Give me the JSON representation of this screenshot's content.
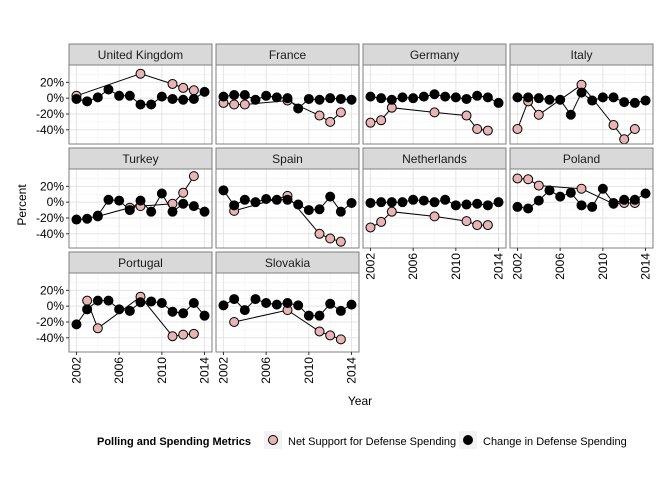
{
  "chart_data": {
    "type": "scatter",
    "facets_layout": "4 columns, shared axes, lines connect points of each series",
    "xlabel": "Year",
    "ylabel": "Percent",
    "xlim": [
      2001.3,
      2014.7
    ],
    "ylim": [
      -58,
      42
    ],
    "x_ticks": [
      2002,
      2006,
      2010,
      2014
    ],
    "x_tick_labels": [
      "2002",
      "2006",
      "2010",
      "2014"
    ],
    "y_ticks": [
      20,
      0,
      -20,
      -40
    ],
    "y_tick_labels": [
      "20%",
      "0%",
      "-20%",
      "-40%"
    ],
    "grid": true,
    "legend": {
      "title": "Polling and Spending Metrics",
      "placement": "bottom",
      "items": [
        {
          "key": "support",
          "label": "Net Support for Defense Spending",
          "marker": "open-circle-pink",
          "color": "#e8b4b4"
        },
        {
          "key": "change",
          "label": "Change in Defense Spending",
          "marker": "filled-circle",
          "color": "#000000"
        }
      ]
    },
    "facets": [
      {
        "name": "United Kingdom",
        "support": {
          "x": [
            2002,
            2008,
            2011,
            2012,
            2013
          ],
          "y": [
            3,
            31,
            18,
            13,
            10
          ]
        },
        "change": {
          "x": [
            2002,
            2003,
            2004,
            2005,
            2006,
            2007,
            2008,
            2009,
            2010,
            2011,
            2012,
            2013,
            2014
          ],
          "y": [
            -1,
            -4,
            1,
            11,
            3,
            3,
            -8,
            -8,
            2,
            -1,
            -2,
            -1,
            8
          ]
        }
      },
      {
        "name": "France",
        "support": {
          "x": [
            2002,
            2003,
            2004,
            2008,
            2011,
            2012,
            2013
          ],
          "y": [
            -6,
            -8,
            -8,
            -3,
            -22,
            -30,
            -18
          ]
        },
        "change": {
          "x": [
            2002,
            2003,
            2004,
            2005,
            2006,
            2007,
            2008,
            2009,
            2010,
            2011,
            2012,
            2013,
            2014
          ],
          "y": [
            2,
            4,
            4,
            -2,
            3,
            1,
            0,
            -13,
            -1,
            -2,
            0,
            -1,
            -2
          ]
        }
      },
      {
        "name": "Germany",
        "support": {
          "x": [
            2002,
            2003,
            2004,
            2008,
            2011,
            2012,
            2013
          ],
          "y": [
            -31,
            -28,
            -12,
            -18,
            -22,
            -39,
            -41
          ]
        },
        "change": {
          "x": [
            2002,
            2003,
            2004,
            2005,
            2006,
            2007,
            2008,
            2009,
            2010,
            2011,
            2012,
            2013,
            2014
          ],
          "y": [
            2,
            0,
            -2,
            1,
            0,
            2,
            5,
            2,
            1,
            -1,
            3,
            1,
            -6
          ]
        }
      },
      {
        "name": "Italy",
        "support": {
          "x": [
            2002,
            2003,
            2004,
            2008,
            2011,
            2012,
            2013
          ],
          "y": [
            -39,
            -4,
            -21,
            17,
            -34,
            -52,
            -39
          ]
        },
        "change": {
          "x": [
            2002,
            2003,
            2004,
            2005,
            2006,
            2007,
            2008,
            2009,
            2010,
            2011,
            2012,
            2013,
            2014
          ],
          "y": [
            1,
            1,
            0,
            -2,
            -2,
            -21,
            7,
            -3,
            1,
            1,
            -5,
            -6,
            -3
          ]
        }
      },
      {
        "name": "Turkey",
        "support": {
          "x": [
            2004,
            2007,
            2008,
            2011,
            2012,
            2013
          ],
          "y": [
            -18,
            -7,
            -5,
            -2,
            12,
            33
          ]
        },
        "change": {
          "x": [
            2002,
            2003,
            2004,
            2005,
            2006,
            2007,
            2008,
            2009,
            2010,
            2011,
            2012,
            2013,
            2014
          ],
          "y": [
            -22,
            -21,
            -17,
            3,
            2,
            -10,
            2,
            -12,
            11,
            -12,
            -2,
            -5,
            -12
          ]
        }
      },
      {
        "name": "Spain",
        "support": {
          "x": [
            2003,
            2008,
            2011,
            2012,
            2013
          ],
          "y": [
            -11,
            8,
            -40,
            -46,
            -50
          ]
        },
        "change": {
          "x": [
            2002,
            2003,
            2004,
            2005,
            2006,
            2007,
            2008,
            2009,
            2010,
            2011,
            2012,
            2013,
            2014
          ],
          "y": [
            15,
            -4,
            3,
            0,
            4,
            3,
            3,
            -3,
            -10,
            -9,
            7,
            -12,
            -1
          ]
        }
      },
      {
        "name": "Netherlands",
        "support": {
          "x": [
            2002,
            2003,
            2004,
            2008,
            2011,
            2012,
            2013
          ],
          "y": [
            -32,
            -25,
            -12,
            -18,
            -24,
            -29,
            -29
          ]
        },
        "change": {
          "x": [
            2002,
            2003,
            2004,
            2005,
            2006,
            2007,
            2008,
            2009,
            2010,
            2011,
            2012,
            2013,
            2014
          ],
          "y": [
            -1,
            0,
            0,
            0,
            3,
            2,
            0,
            3,
            -4,
            -3,
            -2,
            -4,
            0
          ]
        }
      },
      {
        "name": "Poland",
        "support": {
          "x": [
            2002,
            2003,
            2004,
            2008,
            2011,
            2012,
            2013
          ],
          "y": [
            30,
            29,
            21,
            17,
            -2,
            -1,
            -1
          ]
        },
        "change": {
          "x": [
            2002,
            2003,
            2004,
            2005,
            2006,
            2007,
            2008,
            2009,
            2010,
            2011,
            2012,
            2013,
            2014
          ],
          "y": [
            -6,
            -8,
            2,
            15,
            7,
            12,
            -4,
            -6,
            17,
            -1,
            3,
            3,
            11
          ]
        }
      },
      {
        "name": "Portugal",
        "support": {
          "x": [
            2003,
            2004,
            2008,
            2011,
            2012,
            2013
          ],
          "y": [
            7,
            -28,
            12,
            -38,
            -36,
            -35
          ]
        },
        "change": {
          "x": [
            2002,
            2003,
            2004,
            2005,
            2006,
            2007,
            2008,
            2009,
            2010,
            2011,
            2012,
            2013,
            2014
          ],
          "y": [
            -23,
            -4,
            7,
            7,
            -4,
            -6,
            5,
            6,
            4,
            -7,
            -9,
            4,
            -12
          ]
        }
      },
      {
        "name": "Slovakia",
        "support": {
          "x": [
            2003,
            2008,
            2011,
            2012,
            2013
          ],
          "y": [
            -20,
            -5,
            -32,
            -37,
            -42
          ]
        },
        "change": {
          "x": [
            2002,
            2003,
            2004,
            2005,
            2006,
            2007,
            2008,
            2009,
            2010,
            2011,
            2012,
            2013,
            2014
          ],
          "y": [
            1,
            9,
            -5,
            9,
            4,
            2,
            4,
            1,
            -12,
            -12,
            3,
            -6,
            2
          ]
        }
      }
    ]
  }
}
